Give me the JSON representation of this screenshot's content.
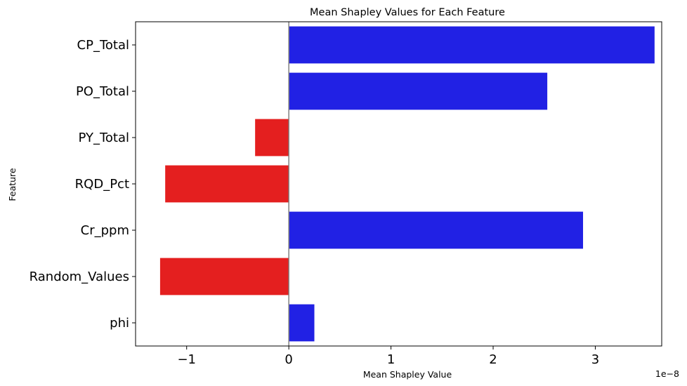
{
  "chart_data": {
    "type": "bar",
    "orientation": "horizontal",
    "title": "Mean Shapley Values for Each Feature",
    "xlabel": "Mean Shapley Value",
    "ylabel": "Feature",
    "x_offset_label": "1e−8",
    "categories": [
      "CP_Total",
      "PO_Total",
      "PY_Total",
      "RQD_Pct",
      "Cr_ppm",
      "Random_Values",
      "phi"
    ],
    "values": [
      3.58,
      2.53,
      -0.33,
      -1.21,
      2.88,
      -1.26,
      0.25
    ],
    "xlim": [
      -1.5,
      3.65
    ],
    "x_ticks": [
      -1,
      0,
      1,
      2,
      3
    ],
    "x_tick_labels": [
      "−1",
      "0",
      "1",
      "2",
      "3"
    ],
    "grid": false,
    "legend": "none",
    "colors": {
      "positive": "#2121e4",
      "negative": "#e41f1f",
      "zero_line": "#808080"
    }
  }
}
